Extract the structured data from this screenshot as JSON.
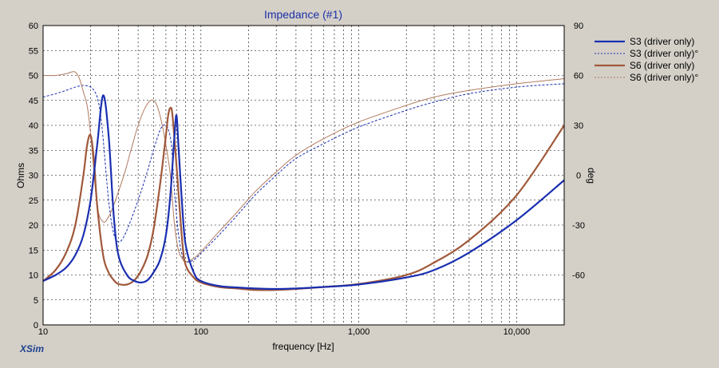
{
  "app": {
    "brand": "XSim"
  },
  "chart_data": {
    "type": "line",
    "title": "Impedance (#1)",
    "xlabel": "frequency [Hz]",
    "ylabel": "Ohms",
    "y2label": "deg",
    "x_scale": "log",
    "xlim": [
      10,
      20000
    ],
    "ylim": [
      0,
      60
    ],
    "y2lim": [
      -90,
      90
    ],
    "grid": true,
    "legend_position": "right",
    "x_ticks": [
      10,
      100,
      1000,
      10000
    ],
    "x_tick_labels": [
      "10",
      "100",
      "1,000",
      "10,000"
    ],
    "y_ticks": [
      0,
      5,
      10,
      15,
      20,
      25,
      30,
      35,
      40,
      45,
      50,
      55,
      60
    ],
    "y_tick_labels": [
      "0",
      "5",
      "10",
      "15",
      "20",
      "25",
      "30",
      "35",
      "40",
      "45",
      "50",
      "55",
      "60"
    ],
    "y2_ticks": [
      -60,
      -30,
      0,
      30,
      60,
      90
    ],
    "y2_tick_labels": [
      "-60",
      "-30",
      "0",
      "30",
      "60",
      "90"
    ],
    "series": [
      {
        "name": "S3 (driver only)",
        "axis": "left",
        "color": "#1a2fb0",
        "style": "solid",
        "x": [
          10,
          12,
          14,
          16,
          18,
          20,
          22,
          24,
          26,
          28,
          30,
          34,
          38,
          42,
          46,
          50,
          55,
          60,
          64,
          68,
          70,
          72,
          76,
          80,
          90,
          100,
          130,
          170,
          220,
          300,
          400,
          600,
          1000,
          2000,
          3000,
          5000,
          10000,
          20000
        ],
        "y": [
          8.8,
          10,
          11.5,
          14,
          18,
          25,
          36,
          46,
          38,
          22,
          14,
          10,
          8.8,
          8.5,
          9,
          10.5,
          13,
          18,
          26,
          38,
          42,
          36,
          24,
          16,
          10.5,
          8.8,
          7.8,
          7.5,
          7.3,
          7.2,
          7.3,
          7.6,
          8.1,
          9.5,
          11,
          14.5,
          21,
          29
        ]
      },
      {
        "name": "S3 (driver only)°",
        "axis": "right",
        "color": "#1a2fb0",
        "style": "dashed",
        "x": [
          10,
          12,
          14,
          16,
          18,
          20,
          21,
          22,
          23,
          24,
          26,
          28,
          30,
          32,
          35,
          40,
          45,
          50,
          55,
          58,
          60,
          62,
          65,
          68,
          72,
          76,
          80,
          90,
          100,
          130,
          170,
          220,
          300,
          400,
          600,
          1000,
          2000,
          3000,
          5000,
          10000,
          20000
        ],
        "y": [
          47,
          49,
          51,
          53,
          54,
          53,
          51,
          47,
          38,
          22,
          -15,
          -35,
          -40,
          -38,
          -30,
          -15,
          0,
          15,
          27,
          30,
          30,
          28,
          18,
          -10,
          -35,
          -48,
          -52,
          -51,
          -47,
          -36,
          -24,
          -12,
          0,
          10,
          19,
          29,
          39,
          44,
          49,
          53,
          55
        ]
      },
      {
        "name": "S6 (driver only)",
        "axis": "left",
        "color": "#a0593a",
        "style": "solid",
        "x": [
          10,
          12,
          14,
          16,
          18,
          19,
          20,
          21,
          22,
          24,
          26,
          28,
          30,
          34,
          38,
          42,
          46,
          50,
          55,
          60,
          62,
          64,
          66,
          70,
          76,
          80,
          90,
          100,
          130,
          170,
          220,
          300,
          400,
          600,
          1000,
          2000,
          3000,
          5000,
          10000,
          20000
        ],
        "y": [
          8.8,
          11,
          14.5,
          20,
          30,
          36,
          38,
          33,
          24,
          14,
          10.5,
          9,
          8.2,
          8.1,
          9,
          11,
          14,
          19,
          28,
          38,
          42,
          43.5,
          42,
          32,
          17,
          12,
          9.5,
          8.5,
          7.6,
          7.3,
          7.0,
          7.0,
          7.2,
          7.6,
          8.2,
          10,
          12.5,
          17,
          26,
          40
        ]
      },
      {
        "name": "S6 (driver only)°",
        "axis": "right",
        "color": "#b07a60",
        "style": "dashed",
        "x": [
          10,
          12,
          14,
          15,
          16,
          17,
          18,
          19,
          20,
          22,
          24,
          26,
          28,
          30,
          33,
          36,
          40,
          44,
          48,
          52,
          56,
          60,
          64,
          68,
          72,
          76,
          80,
          90,
          100,
          130,
          170,
          220,
          300,
          400,
          600,
          1000,
          2000,
          3000,
          5000,
          10000,
          20000
        ],
        "y": [
          60,
          60,
          61,
          62,
          62,
          58,
          50,
          42,
          25,
          -18,
          -28,
          -25,
          -18,
          -10,
          2,
          15,
          30,
          40,
          45,
          43,
          33,
          18,
          0,
          -30,
          -45,
          -50,
          -52,
          -50,
          -46,
          -34,
          -22,
          -10,
          2,
          12,
          22,
          32,
          42,
          47,
          51,
          55,
          58
        ]
      }
    ]
  }
}
